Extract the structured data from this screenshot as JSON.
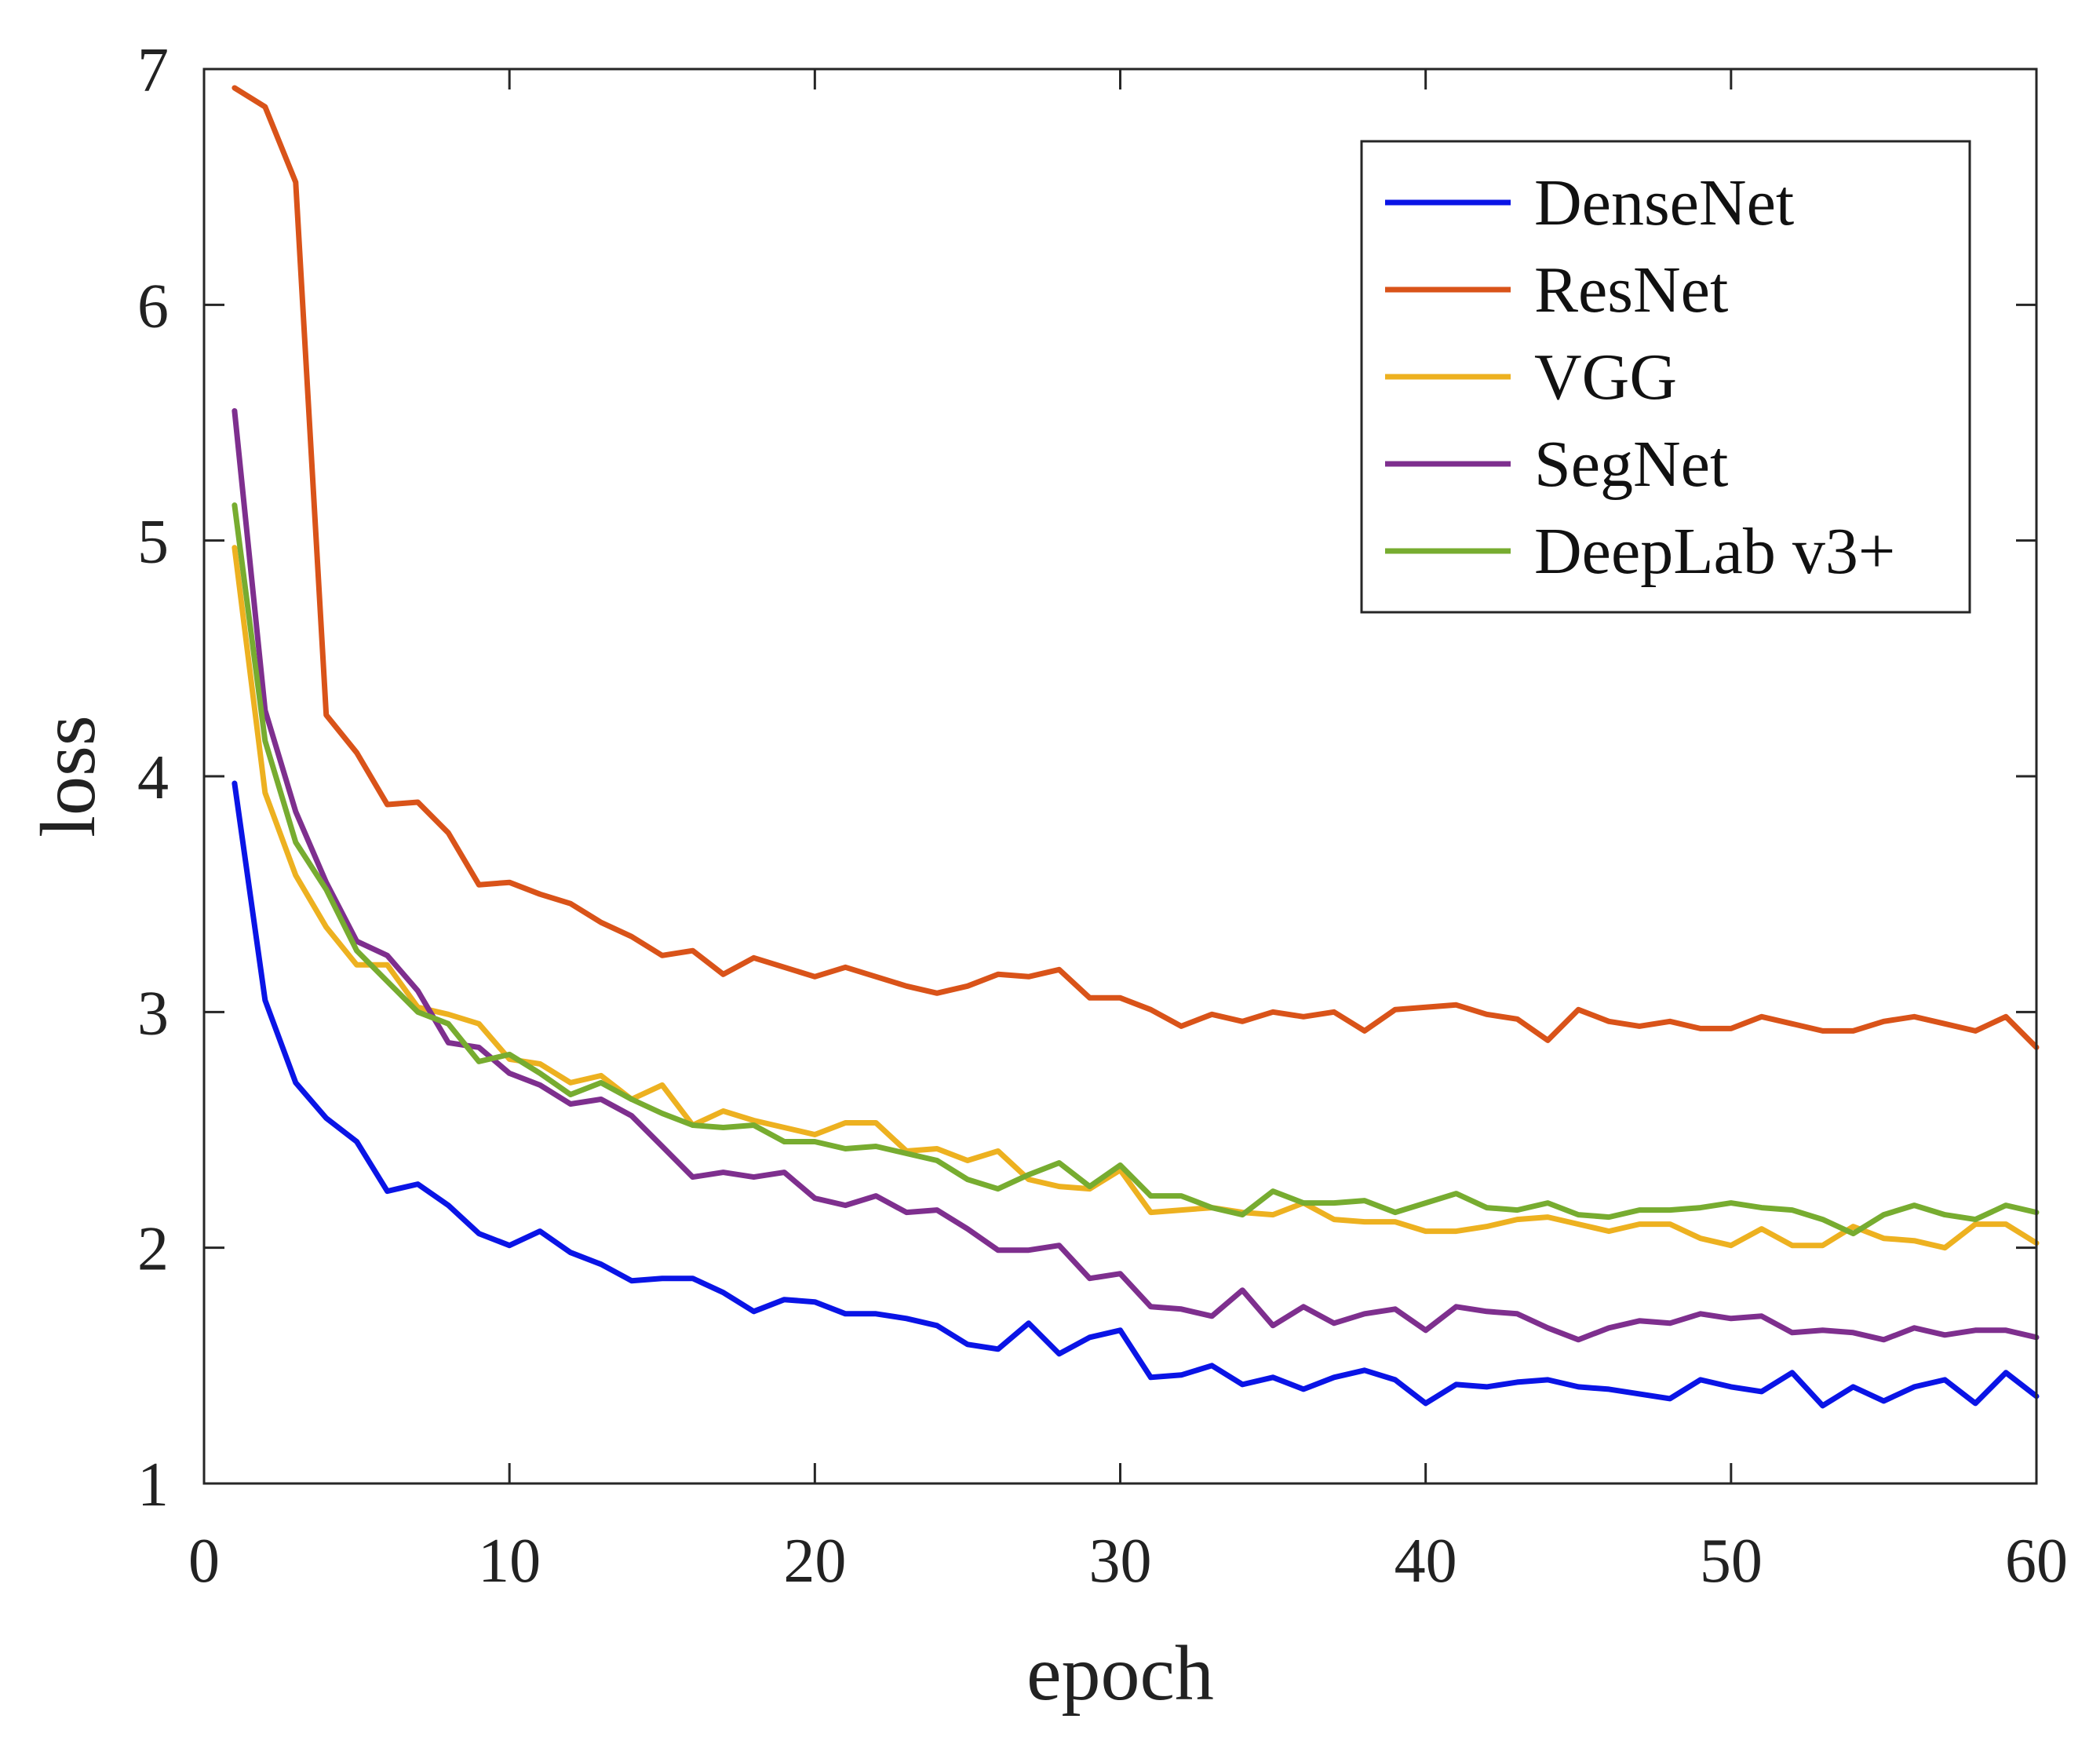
{
  "chart_data": {
    "type": "line",
    "title": "",
    "xlabel": "epoch",
    "ylabel": "loss",
    "xlim": [
      0,
      60
    ],
    "ylim": [
      1,
      7
    ],
    "xticks": [
      0,
      10,
      20,
      30,
      40,
      50,
      60
    ],
    "yticks": [
      1,
      2,
      3,
      4,
      5,
      6,
      7
    ],
    "xtick_labels": [
      "0",
      "10",
      "20",
      "30",
      "40",
      "50",
      "60"
    ],
    "ytick_labels": [
      "1",
      "2",
      "3",
      "4",
      "5",
      "6",
      "7"
    ],
    "grid": false,
    "legend_position": "top-right",
    "x": [
      1,
      2,
      3,
      4,
      5,
      6,
      7,
      8,
      9,
      10,
      11,
      12,
      13,
      14,
      15,
      16,
      17,
      18,
      19,
      20,
      21,
      22,
      23,
      24,
      25,
      26,
      27,
      28,
      29,
      30,
      31,
      32,
      33,
      34,
      35,
      36,
      37,
      38,
      39,
      40,
      41,
      42,
      43,
      44,
      45,
      46,
      47,
      48,
      49,
      50,
      51,
      52,
      53,
      54,
      55,
      56,
      57,
      58,
      59,
      60
    ],
    "series": [
      {
        "name": "DenseNet",
        "color": "#0a14e6",
        "values": [
          3.97,
          3.05,
          2.7,
          2.55,
          2.45,
          2.24,
          2.27,
          2.18,
          2.06,
          2.01,
          2.07,
          1.98,
          1.93,
          1.86,
          1.87,
          1.87,
          1.81,
          1.73,
          1.78,
          1.77,
          1.72,
          1.72,
          1.7,
          1.67,
          1.59,
          1.57,
          1.68,
          1.55,
          1.62,
          1.65,
          1.45,
          1.46,
          1.5,
          1.42,
          1.45,
          1.4,
          1.45,
          1.48,
          1.44,
          1.34,
          1.42,
          1.41,
          1.43,
          1.44,
          1.41,
          1.4,
          1.38,
          1.36,
          1.44,
          1.41,
          1.39,
          1.47,
          1.33,
          1.41,
          1.35,
          1.41,
          1.44,
          1.34,
          1.47,
          1.37
        ]
      },
      {
        "name": "ResNet",
        "color": "#d95319",
        "values": [
          6.92,
          6.84,
          6.52,
          4.26,
          4.1,
          3.88,
          3.89,
          3.76,
          3.54,
          3.55,
          3.5,
          3.46,
          3.38,
          3.32,
          3.24,
          3.26,
          3.16,
          3.23,
          3.19,
          3.15,
          3.19,
          3.15,
          3.11,
          3.08,
          3.11,
          3.16,
          3.15,
          3.18,
          3.06,
          3.06,
          3.01,
          2.94,
          2.99,
          2.96,
          3.0,
          2.98,
          3.0,
          2.92,
          3.01,
          3.02,
          3.03,
          2.99,
          2.97,
          2.88,
          3.01,
          2.96,
          2.94,
          2.96,
          2.93,
          2.93,
          2.98,
          2.95,
          2.92,
          2.92,
          2.96,
          2.98,
          2.95,
          2.92,
          2.98,
          2.85
        ]
      },
      {
        "name": "VGG",
        "color": "#edb120",
        "values": [
          4.97,
          3.93,
          3.58,
          3.36,
          3.2,
          3.2,
          3.02,
          2.99,
          2.95,
          2.8,
          2.78,
          2.7,
          2.73,
          2.63,
          2.69,
          2.52,
          2.58,
          2.54,
          2.51,
          2.48,
          2.53,
          2.53,
          2.41,
          2.42,
          2.37,
          2.41,
          2.29,
          2.26,
          2.25,
          2.33,
          2.15,
          2.16,
          2.17,
          2.15,
          2.14,
          2.19,
          2.12,
          2.11,
          2.11,
          2.07,
          2.07,
          2.09,
          2.12,
          2.13,
          2.1,
          2.07,
          2.1,
          2.1,
          2.04,
          2.01,
          2.08,
          2.01,
          2.01,
          2.09,
          2.04,
          2.03,
          2.0,
          2.1,
          2.1,
          2.02
        ]
      },
      {
        "name": "SegNet",
        "color": "#7e2f8e",
        "values": [
          5.55,
          4.28,
          3.85,
          3.55,
          3.3,
          3.24,
          3.09,
          2.87,
          2.85,
          2.74,
          2.69,
          2.61,
          2.63,
          2.56,
          2.43,
          2.3,
          2.32,
          2.3,
          2.32,
          2.21,
          2.18,
          2.22,
          2.15,
          2.16,
          2.08,
          1.99,
          1.99,
          2.01,
          1.87,
          1.89,
          1.75,
          1.74,
          1.71,
          1.82,
          1.67,
          1.75,
          1.68,
          1.72,
          1.74,
          1.65,
          1.75,
          1.73,
          1.72,
          1.66,
          1.61,
          1.66,
          1.69,
          1.68,
          1.72,
          1.7,
          1.71,
          1.64,
          1.65,
          1.64,
          1.61,
          1.66,
          1.63,
          1.65,
          1.65,
          1.62
        ]
      },
      {
        "name": "DeepLab v3+",
        "color": "#77ac30",
        "values": [
          5.15,
          4.15,
          3.72,
          3.52,
          3.26,
          3.13,
          3.0,
          2.95,
          2.79,
          2.82,
          2.74,
          2.65,
          2.7,
          2.63,
          2.57,
          2.52,
          2.51,
          2.52,
          2.45,
          2.45,
          2.42,
          2.43,
          2.4,
          2.37,
          2.29,
          2.25,
          2.31,
          2.36,
          2.26,
          2.35,
          2.22,
          2.22,
          2.17,
          2.14,
          2.24,
          2.19,
          2.19,
          2.2,
          2.15,
          2.19,
          2.23,
          2.17,
          2.16,
          2.19,
          2.14,
          2.13,
          2.16,
          2.16,
          2.17,
          2.19,
          2.17,
          2.16,
          2.12,
          2.06,
          2.14,
          2.18,
          2.14,
          2.12,
          2.18,
          2.15
        ]
      }
    ]
  }
}
